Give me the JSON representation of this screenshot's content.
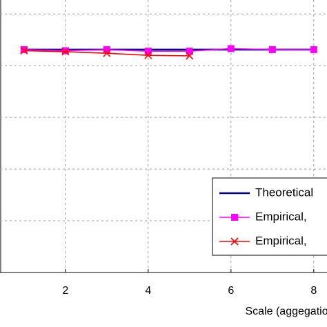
{
  "chart_data": {
    "type": "line",
    "xlabel": "Scale (aggegation",
    "x": [
      1,
      2,
      3,
      4,
      5,
      6,
      7,
      8
    ],
    "series": [
      {
        "name": "Theoretical",
        "color": "#000080",
        "marker": "none",
        "values": [
          4.31,
          4.31,
          4.31,
          4.31,
          4.31,
          4.31,
          4.31,
          4.31
        ]
      },
      {
        "name": "Empirical,",
        "color": "#ff00ff",
        "marker": "square",
        "values": [
          4.31,
          4.29,
          4.31,
          4.28,
          4.28,
          4.33,
          4.31,
          4.31
        ]
      },
      {
        "name": "Empirical,",
        "color": "#ff0000",
        "marker": "x",
        "values": [
          4.29,
          4.27,
          4.24,
          4.2,
          4.19,
          null,
          null,
          null
        ]
      }
    ],
    "xlim": [
      0.42,
      8.32
    ],
    "xticks": [
      2,
      4,
      6,
      8
    ],
    "ylim": [
      0,
      5.27
    ],
    "yticks": [
      1,
      2,
      3,
      4,
      5
    ],
    "grid": true,
    "legend": "lower right"
  }
}
